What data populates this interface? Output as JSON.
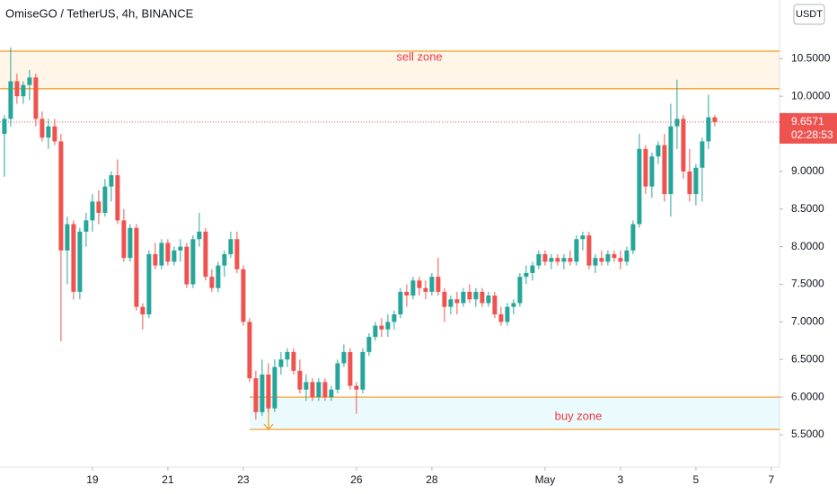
{
  "chart_data": {
    "type": "candlestick",
    "title": "OmiseGO / TetherUS, 4h, BINANCE",
    "currency": "USDT",
    "up_color": "#26a69a",
    "down_color": "#ef5350",
    "open": [
      9.5,
      9.7,
      10.2,
      10.0,
      10.15,
      10.25,
      9.7,
      9.45,
      9.6,
      9.4,
      7.95,
      8.3,
      7.4,
      8.2,
      8.35,
      8.6,
      8.45,
      8.8,
      8.95,
      8.35,
      7.85,
      8.25,
      7.2,
      7.1,
      7.9,
      7.75,
      8.05,
      7.8,
      7.95,
      8.0,
      7.5,
      8.1,
      8.2,
      7.6,
      7.45,
      7.75,
      7.9,
      8.1,
      7.7,
      7.0,
      6.25,
      5.8,
      6.3,
      5.85,
      6.4,
      6.5,
      6.6,
      6.35,
      6.1,
      6.2,
      6.0,
      6.2,
      6.0,
      6.1,
      6.45,
      6.6,
      6.15,
      6.1,
      6.6,
      6.8,
      6.95,
      6.9,
      7.0,
      7.1,
      7.4,
      7.35,
      7.55,
      7.45,
      7.4,
      7.6,
      7.4,
      7.2,
      7.3,
      7.25,
      7.4,
      7.3,
      7.4,
      7.25,
      7.35,
      7.1,
      7.0,
      7.2,
      7.25,
      7.6,
      7.65,
      7.75,
      7.9,
      7.8,
      7.85,
      7.8,
      7.85,
      7.8,
      8.1,
      8.15,
      7.75,
      7.85,
      7.8,
      7.9,
      7.85,
      7.8,
      7.95,
      8.3,
      9.3,
      8.8,
      9.2,
      9.35,
      8.7,
      9.6,
      9.7,
      9.0,
      8.7,
      9.05,
      9.4,
      9.72
    ],
    "high": [
      9.75,
      10.65,
      10.3,
      10.2,
      10.35,
      10.3,
      9.8,
      9.7,
      9.7,
      9.5,
      8.4,
      8.35,
      8.25,
      8.45,
      8.7,
      8.75,
      8.9,
      9.0,
      9.16,
      8.5,
      8.3,
      8.3,
      7.25,
      7.95,
      8.05,
      8.1,
      8.1,
      8.0,
      8.1,
      8.05,
      8.15,
      8.45,
      8.25,
      7.7,
      7.8,
      7.95,
      8.2,
      8.2,
      7.75,
      7.05,
      6.35,
      6.5,
      6.45,
      6.5,
      6.6,
      6.65,
      6.65,
      6.5,
      6.3,
      6.25,
      6.25,
      6.25,
      6.15,
      6.5,
      6.7,
      6.65,
      6.2,
      6.65,
      6.85,
      7.0,
      7.05,
      7.1,
      7.15,
      7.45,
      7.5,
      7.6,
      7.6,
      7.55,
      7.65,
      7.85,
      7.45,
      7.35,
      7.4,
      7.45,
      7.5,
      7.45,
      7.45,
      7.4,
      7.4,
      7.2,
      7.25,
      7.3,
      7.65,
      7.75,
      7.8,
      7.95,
      7.95,
      7.9,
      7.9,
      7.9,
      7.95,
      8.15,
      8.2,
      8.2,
      7.9,
      7.95,
      7.95,
      7.95,
      7.95,
      8.0,
      8.35,
      9.5,
      9.35,
      9.25,
      9.4,
      9.5,
      9.9,
      10.22,
      9.75,
      9.3,
      9.1,
      9.45,
      10.02,
      9.75
    ],
    "low": [
      8.93,
      9.6,
      9.9,
      9.9,
      9.95,
      9.6,
      9.4,
      9.3,
      9.35,
      6.74,
      7.5,
      7.3,
      7.3,
      8.0,
      8.2,
      8.3,
      8.4,
      8.6,
      8.3,
      7.8,
      7.8,
      7.15,
      6.9,
      7.05,
      7.7,
      7.7,
      7.75,
      7.75,
      7.8,
      7.45,
      7.45,
      8.0,
      7.55,
      7.4,
      7.4,
      7.6,
      7.85,
      7.65,
      6.95,
      6.2,
      5.7,
      5.75,
      5.8,
      5.8,
      6.3,
      6.4,
      6.3,
      6.05,
      5.95,
      5.95,
      5.95,
      5.95,
      5.95,
      6.05,
      6.4,
      6.1,
      5.78,
      6.05,
      6.55,
      6.75,
      6.8,
      6.8,
      6.9,
      7.05,
      7.2,
      7.3,
      7.35,
      7.3,
      7.35,
      7.35,
      7.0,
      7.1,
      7.1,
      7.2,
      7.25,
      7.2,
      7.2,
      7.2,
      7.05,
      6.95,
      6.95,
      7.1,
      7.2,
      7.5,
      7.55,
      7.7,
      7.75,
      7.7,
      7.75,
      7.7,
      7.75,
      7.75,
      7.95,
      7.7,
      7.65,
      7.75,
      7.75,
      7.8,
      7.7,
      7.75,
      7.9,
      8.25,
      8.7,
      8.65,
      9.1,
      8.6,
      8.4,
      9.3,
      8.9,
      8.6,
      8.55,
      8.6,
      9.3,
      9.6
    ],
    "close": [
      9.7,
      10.2,
      10.0,
      10.15,
      10.25,
      9.7,
      9.45,
      9.6,
      9.4,
      7.95,
      8.3,
      7.4,
      8.2,
      8.35,
      8.6,
      8.45,
      8.8,
      8.95,
      8.35,
      7.85,
      8.25,
      7.2,
      7.1,
      7.9,
      7.75,
      8.05,
      7.8,
      7.95,
      8.0,
      7.5,
      8.1,
      8.2,
      7.6,
      7.45,
      7.75,
      7.9,
      8.1,
      7.7,
      7.0,
      6.25,
      5.8,
      6.3,
      5.85,
      6.4,
      6.5,
      6.6,
      6.35,
      6.1,
      6.2,
      6.0,
      6.2,
      6.0,
      6.1,
      6.45,
      6.6,
      6.15,
      6.1,
      6.6,
      6.8,
      6.95,
      6.9,
      7.0,
      7.1,
      7.4,
      7.35,
      7.55,
      7.45,
      7.4,
      7.6,
      7.4,
      7.2,
      7.3,
      7.25,
      7.4,
      7.3,
      7.4,
      7.25,
      7.35,
      7.1,
      7.0,
      7.2,
      7.25,
      7.6,
      7.65,
      7.75,
      7.9,
      7.8,
      7.85,
      7.8,
      7.85,
      7.8,
      8.1,
      8.15,
      7.75,
      7.85,
      7.8,
      7.9,
      7.85,
      7.8,
      7.95,
      8.3,
      9.3,
      8.8,
      9.2,
      9.35,
      8.7,
      9.6,
      9.7,
      9.0,
      8.7,
      9.05,
      9.4,
      9.72,
      9.6571
    ],
    "xlim": [
      -0.7,
      123.3
    ],
    "xticks": [
      {
        "value": 14,
        "label": "19"
      },
      {
        "value": 26,
        "label": "21"
      },
      {
        "value": 38,
        "label": "23"
      },
      {
        "value": 56,
        "label": "26"
      },
      {
        "value": 68,
        "label": "28"
      },
      {
        "value": 86,
        "label": "May"
      },
      {
        "value": 98,
        "label": "3"
      },
      {
        "value": 110,
        "label": "5"
      },
      {
        "value": 122,
        "label": "7"
      }
    ],
    "ylim": [
      5.07,
      11.28
    ],
    "yticks": [
      {
        "value": 5.5,
        "label": "5.5000"
      },
      {
        "value": 6,
        "label": "6.0000"
      },
      {
        "value": 6.5,
        "label": "6.5000"
      },
      {
        "value": 7,
        "label": "7.0000"
      },
      {
        "value": 7.5,
        "label": "7.5000"
      },
      {
        "value": 8,
        "label": "8.0000"
      },
      {
        "value": 8.5,
        "label": "8.5000"
      },
      {
        "value": 9,
        "label": "9.0000"
      },
      {
        "value": 9.5,
        "label": "9.5000"
      },
      {
        "value": 10,
        "label": "10.0000"
      },
      {
        "value": 10.5,
        "label": "10.5000"
      }
    ],
    "zones": [
      {
        "label": "sell zone",
        "low": 10.1,
        "high": 10.6
      },
      {
        "label": "buy zone",
        "low": 5.57,
        "high": 6.0
      }
    ],
    "price_line": {
      "value": 9.6571,
      "label": "9.6571",
      "countdown": "02:28:53"
    }
  }
}
